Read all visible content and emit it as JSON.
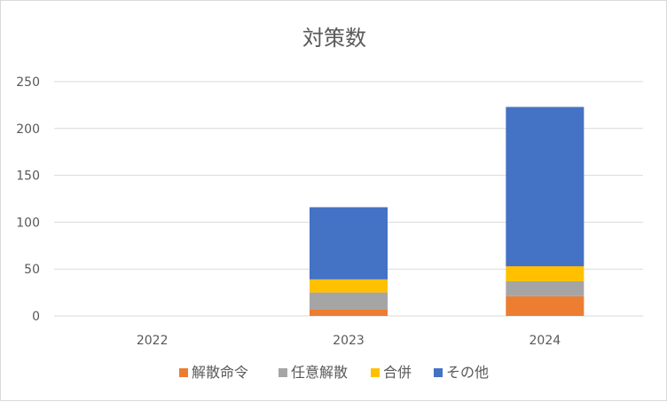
{
  "chart_data": {
    "type": "bar",
    "stacked": true,
    "title": "対策数",
    "categories": [
      "2022",
      "2023",
      "2024"
    ],
    "series": [
      {
        "name": "解散命令",
        "color": "#ED7D31",
        "values": [
          0,
          7,
          21
        ]
      },
      {
        "name": "任意解散",
        "color": "#A5A5A5",
        "values": [
          0,
          18,
          16
        ]
      },
      {
        "name": "合併",
        "color": "#FFC000",
        "values": [
          0,
          14,
          16
        ]
      },
      {
        "name": "その他",
        "color": "#4472C4",
        "values": [
          0,
          77,
          170
        ]
      }
    ],
    "ylim": [
      0,
      250
    ],
    "yticks": [
      0,
      50,
      100,
      150,
      200,
      250
    ],
    "grid": true,
    "legend": "bottom"
  }
}
